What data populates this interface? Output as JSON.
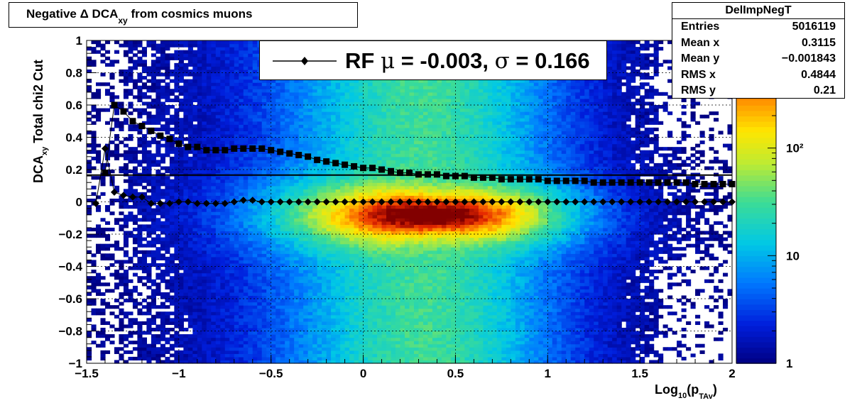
{
  "title": {
    "prefix": "Negative ",
    "delta": "Δ",
    "main": " DCA",
    "sub": "xy",
    "suffix": " from cosmics muons"
  },
  "stats": {
    "name": "DelImpNegT",
    "rows": [
      {
        "label": "Entries",
        "value": "5016119"
      },
      {
        "label": "Mean x",
        "value": "0.3115"
      },
      {
        "label": "Mean y",
        "value": "−0.001843"
      },
      {
        "label": "RMS x",
        "value": "0.4844"
      },
      {
        "label": "RMS y",
        "value": "0.21"
      }
    ]
  },
  "legend": {
    "prefix": "RF ",
    "mu": "μ",
    "mid": " = -0.003, ",
    "sigma": "σ",
    "suffix": " =   0.166"
  },
  "xaxis_title": {
    "pre": "Log",
    "sub1": "10",
    "mid": "(p",
    "sub2": "TAv",
    "post": ")"
  },
  "yaxis_title": {
    "pre": "DCA",
    "sub": "xy",
    "post": "    Total chi2 Cut"
  },
  "chart_data": {
    "type": "heatmap",
    "xlim": [
      -1.5,
      2
    ],
    "ylim": [
      -1,
      1
    ],
    "x_ticks": [
      "−1.5",
      "−1",
      "−0.5",
      "0",
      "0.5",
      "1",
      "1.5",
      "2"
    ],
    "x_tick_values": [
      -1.5,
      -1,
      -0.5,
      0,
      0.5,
      1,
      1.5,
      2
    ],
    "y_ticks": [
      "−1",
      "−0.8",
      "−0.6",
      "−0.4",
      "−0.2",
      "0",
      "0.2",
      "0.4",
      "0.6",
      "0.8",
      "1"
    ],
    "y_tick_values": [
      -1,
      -0.8,
      -0.6,
      -0.4,
      -0.2,
      0,
      0.2,
      0.4,
      0.6,
      0.8,
      1
    ],
    "z_scale": "log",
    "z_range": [
      1,
      1000
    ],
    "z_ticks": [
      "1",
      "10",
      "10²"
    ],
    "z_tick_values": [
      1,
      10,
      100
    ],
    "grid": true,
    "hline_value": 0.166,
    "series": [
      {
        "marker": "diamond",
        "x": [
          -1.45,
          -1.4,
          -1.35,
          -1.3,
          -1.25,
          -1.2,
          -1.15,
          -1.1,
          -1.05,
          -1.0,
          -0.95,
          -0.9,
          -0.85,
          -0.8,
          -0.75,
          -0.7,
          -0.65,
          -0.6,
          -0.55,
          -0.5,
          -0.45,
          -0.4,
          -0.35,
          -0.3,
          -0.25,
          -0.2,
          -0.15,
          -0.1,
          -0.05,
          0.0,
          0.05,
          0.1,
          0.15,
          0.2,
          0.25,
          0.3,
          0.35,
          0.4,
          0.45,
          0.5,
          0.55,
          0.6,
          0.65,
          0.7,
          0.75,
          0.8,
          0.85,
          0.9,
          0.95,
          1.0,
          1.05,
          1.1,
          1.15,
          1.2,
          1.25,
          1.3,
          1.35,
          1.4,
          1.45,
          1.5,
          1.55,
          1.6,
          1.65,
          1.7,
          1.75,
          1.8,
          1.85,
          1.9,
          1.95,
          2.0
        ],
        "y": [
          -0.01,
          0.33,
          0.06,
          0.04,
          0.03,
          0.03,
          -0.01,
          -0.01,
          -0.01,
          0.0,
          0.0,
          -0.01,
          -0.01,
          -0.01,
          -0.01,
          0.0,
          0.01,
          0.01,
          0.0,
          0.0,
          0.0,
          0.0,
          0.0,
          0.0,
          0.0,
          0.0,
          0.0,
          0.0,
          0.0,
          0.0,
          0.0,
          0.0,
          0.0,
          0.0,
          0.0,
          0.0,
          0.0,
          0.0,
          0.0,
          0.0,
          0.0,
          0.0,
          0.0,
          0.0,
          0.0,
          0.0,
          0.0,
          0.0,
          0.0,
          0.0,
          0.0,
          0.0,
          0.0,
          0.0,
          0.0,
          0.0,
          0.0,
          0.0,
          0.0,
          0.0,
          0.0,
          0.0,
          0.0,
          0.0,
          0.0,
          0.0,
          0.0,
          0.0,
          0.0,
          0.0
        ]
      },
      {
        "marker": "square",
        "x": [
          -1.4,
          -1.35,
          -1.3,
          -1.25,
          -1.2,
          -1.15,
          -1.1,
          -1.05,
          -1.0,
          -0.95,
          -0.9,
          -0.85,
          -0.8,
          -0.75,
          -0.7,
          -0.65,
          -0.6,
          -0.55,
          -0.5,
          -0.45,
          -0.4,
          -0.35,
          -0.3,
          -0.25,
          -0.2,
          -0.15,
          -0.1,
          -0.05,
          0.0,
          0.05,
          0.1,
          0.15,
          0.2,
          0.25,
          0.3,
          0.35,
          0.4,
          0.45,
          0.5,
          0.55,
          0.6,
          0.65,
          0.7,
          0.75,
          0.8,
          0.85,
          0.9,
          0.95,
          1.0,
          1.05,
          1.1,
          1.15,
          1.2,
          1.25,
          1.3,
          1.35,
          1.4,
          1.45,
          1.5,
          1.55,
          1.6,
          1.65,
          1.7,
          1.75,
          1.8,
          1.85,
          1.9,
          1.95,
          2.0
        ],
        "y": [
          0.18,
          0.6,
          0.56,
          0.5,
          0.47,
          0.44,
          0.41,
          0.39,
          0.36,
          0.34,
          0.34,
          0.32,
          0.32,
          0.32,
          0.33,
          0.33,
          0.33,
          0.33,
          0.32,
          0.31,
          0.3,
          0.29,
          0.28,
          0.26,
          0.25,
          0.24,
          0.23,
          0.22,
          0.21,
          0.21,
          0.2,
          0.19,
          0.18,
          0.18,
          0.17,
          0.17,
          0.17,
          0.16,
          0.16,
          0.16,
          0.15,
          0.15,
          0.15,
          0.14,
          0.14,
          0.14,
          0.14,
          0.14,
          0.13,
          0.13,
          0.13,
          0.13,
          0.13,
          0.12,
          0.12,
          0.12,
          0.12,
          0.12,
          0.12,
          0.12,
          0.12,
          0.12,
          0.12,
          0.12,
          0.11,
          0.11,
          0.11,
          0.11,
          0.11
        ]
      }
    ]
  }
}
